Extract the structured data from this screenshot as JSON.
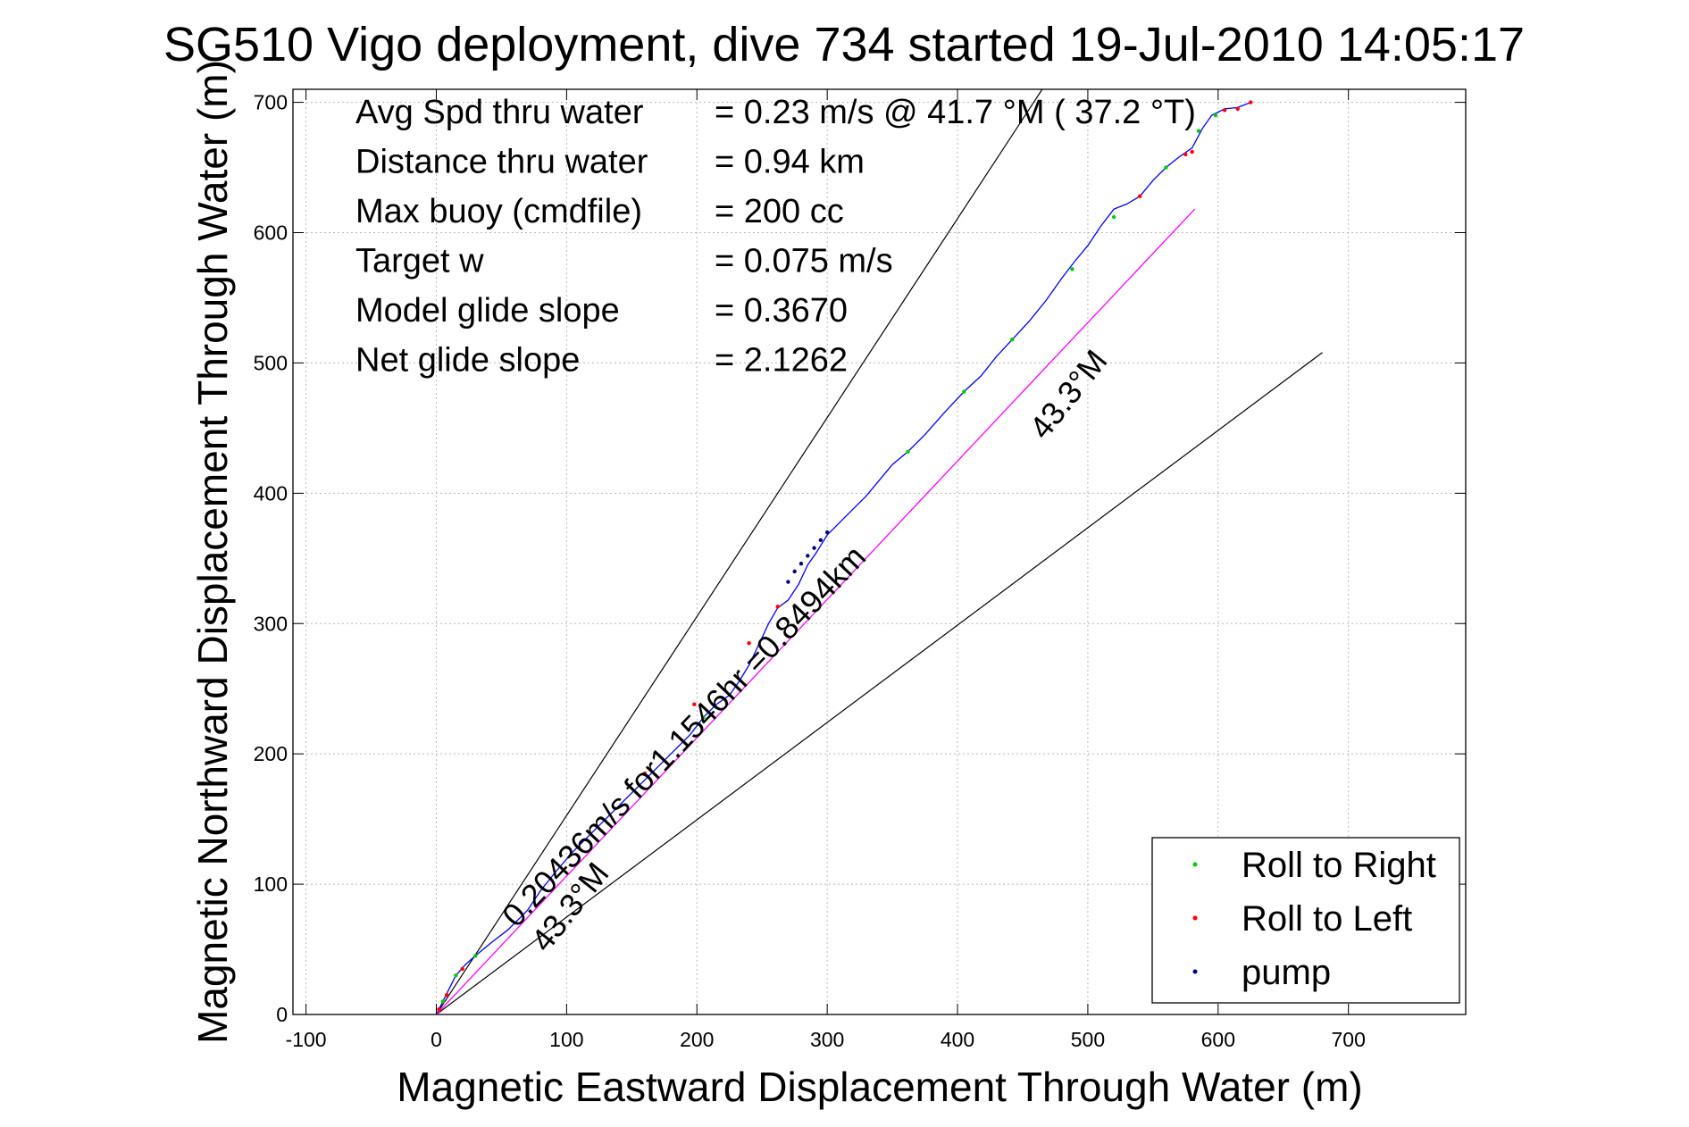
{
  "chart_data": {
    "type": "line",
    "title": "SG510 Vigo deployment, dive 734 started 19-Jul-2010 14:05:17",
    "xlabel": "Magnetic Eastward Displacement Through Water (m)",
    "ylabel": "Magnetic Northward Displacement Through Water (m)",
    "xlim": [
      -110,
      790
    ],
    "ylim": [
      0,
      710
    ],
    "xticks": [
      -100,
      0,
      100,
      200,
      300,
      400,
      500,
      600,
      700
    ],
    "yticks": [
      0,
      100,
      200,
      300,
      400,
      500,
      600,
      700
    ],
    "grid": true,
    "legend_position": "bottom-right",
    "stats": [
      {
        "label": "Avg Spd thru water",
        "value": "=  0.23 m/s @  41.7 °M ( 37.2 °T)"
      },
      {
        "label": "Distance thru water",
        "value": "=  0.94 km"
      },
      {
        "label": "Max buoy (cmdfile)",
        "value": "= 200 cc"
      },
      {
        "label": "Target w",
        "value": "= 0.075 m/s"
      },
      {
        "label": "Model glide slope",
        "value": "= 0.3670"
      },
      {
        "label": "Net glide slope",
        "value": "= 2.1262"
      }
    ],
    "annotations": {
      "course_upper": "43.3°M",
      "course_lower": "43.3°M",
      "net_track": "0.20436m/s for1.1546hr =0.8494km"
    },
    "reference_lines": [
      {
        "x": [
          0,
          465
        ],
        "y": [
          0,
          710
        ],
        "color": "#000000"
      },
      {
        "x": [
          0,
          680
        ],
        "y": [
          0,
          508
        ],
        "color": "#000000"
      }
    ],
    "series": [
      {
        "name": "track",
        "style": "line",
        "color": "#0000ff",
        "x": [
          0,
          5,
          10,
          15,
          22,
          30,
          42,
          55,
          70,
          80,
          92,
          105,
          120,
          135,
          150,
          165,
          180,
          195,
          205,
          215,
          225,
          232,
          240,
          248,
          255,
          262,
          270,
          278,
          285,
          292,
          300,
          310,
          320,
          330,
          340,
          350,
          362,
          375,
          390,
          405,
          418,
          430,
          442,
          455,
          468,
          480,
          490,
          500,
          510,
          520,
          530,
          540,
          550,
          560,
          570,
          580,
          588,
          595,
          605,
          615,
          625
        ],
        "y": [
          0,
          10,
          20,
          30,
          38,
          45,
          55,
          65,
          80,
          95,
          110,
          125,
          140,
          155,
          170,
          185,
          200,
          215,
          228,
          238,
          245,
          255,
          268,
          285,
          300,
          312,
          318,
          330,
          345,
          355,
          368,
          378,
          388,
          398,
          410,
          422,
          432,
          445,
          462,
          478,
          490,
          505,
          518,
          532,
          548,
          565,
          578,
          590,
          605,
          618,
          622,
          628,
          640,
          650,
          658,
          665,
          680,
          690,
          695,
          696,
          700
        ]
      },
      {
        "name": "net displacement",
        "style": "line",
        "color": "#ff00ff",
        "x": [
          0,
          582
        ],
        "y": [
          0,
          618
        ]
      },
      {
        "name": "Roll to Right",
        "style": "points",
        "color": "#00cc00",
        "x": [
          5,
          15,
          30,
          205,
          362,
          405,
          442,
          488,
          520,
          560,
          585,
          598
        ],
        "y": [
          10,
          30,
          45,
          228,
          432,
          478,
          518,
          572,
          612,
          650,
          678,
          690
        ]
      },
      {
        "name": "Roll to Left",
        "style": "points",
        "color": "#ff0000",
        "x": [
          2,
          8,
          20,
          160,
          198,
          240,
          262,
          540,
          575,
          580,
          605,
          615,
          625
        ],
        "y": [
          4,
          15,
          35,
          185,
          238,
          285,
          313,
          628,
          660,
          662,
          694,
          695,
          700
        ]
      },
      {
        "name": "pump",
        "style": "points",
        "color": "#000080",
        "x": [
          270,
          275,
          280,
          285,
          290,
          295,
          300
        ],
        "y": [
          332,
          340,
          346,
          352,
          358,
          364,
          370
        ]
      }
    ],
    "legend": [
      {
        "label": "Roll to Right",
        "color": "#00cc00"
      },
      {
        "label": "Roll to Left",
        "color": "#ff0000"
      },
      {
        "label": "pump",
        "color": "#000080"
      }
    ]
  }
}
